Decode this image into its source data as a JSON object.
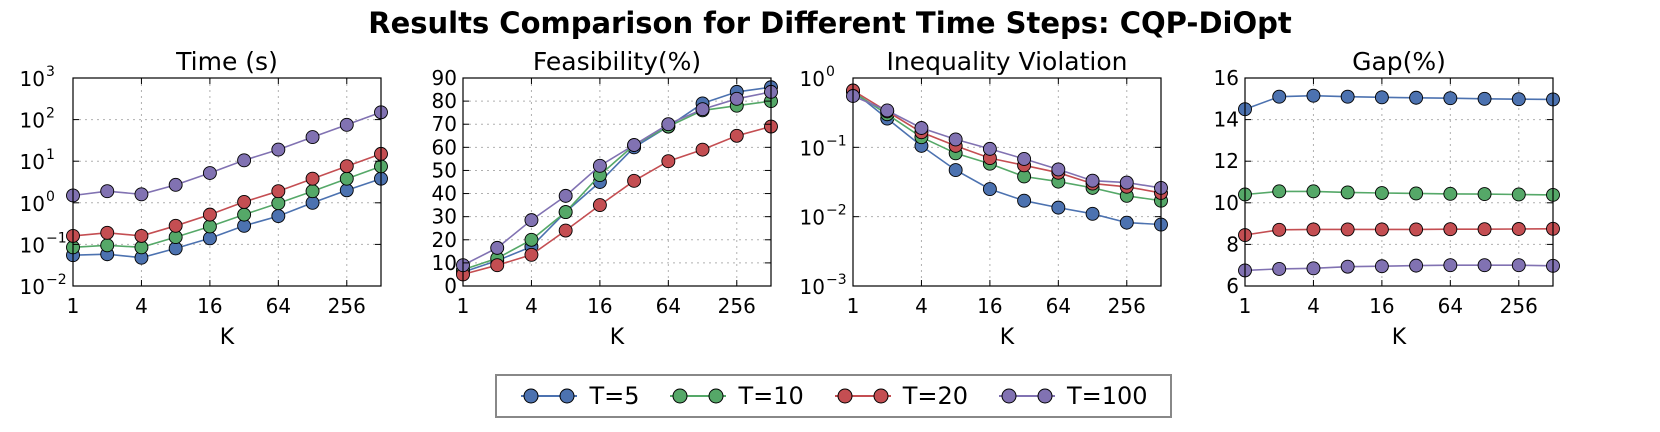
{
  "title": "Results Comparison for Different Time Steps: CQP-DiOpt",
  "legend": [
    "T=5",
    "T=10",
    "T=20",
    "T=100"
  ],
  "colors": {
    "T=5": "#4c72b0",
    "T=10": "#55a868",
    "T=20": "#c44e52",
    "T=100": "#8172b2"
  },
  "chart_data": [
    {
      "type": "line",
      "title": "Time (s)",
      "xlabel": "K",
      "ylabel": "",
      "xscale": "log2",
      "yscale": "log",
      "x": [
        1,
        2,
        4,
        8,
        16,
        32,
        64,
        128,
        256,
        512
      ],
      "xticks": [
        1,
        4,
        16,
        64,
        256
      ],
      "xlim": [
        1,
        512
      ],
      "ylim": [
        0.01,
        1000
      ],
      "yticks": [
        0.01,
        0.1,
        1,
        10,
        100,
        1000
      ],
      "yticklabels": [
        "10",
        "10",
        "10",
        "10",
        "10",
        "10"
      ],
      "ytickexp": [
        "−2",
        "−1",
        "0",
        "1",
        "2",
        "3"
      ],
      "grid": true,
      "series": [
        {
          "name": "T=5",
          "values": [
            0.055,
            0.058,
            0.048,
            0.08,
            0.14,
            0.28,
            0.48,
            1.0,
            2.0,
            3.8
          ]
        },
        {
          "name": "T=10",
          "values": [
            0.085,
            0.095,
            0.085,
            0.15,
            0.27,
            0.52,
            0.98,
            1.9,
            3.8,
            7.5
          ]
        },
        {
          "name": "T=20",
          "values": [
            0.16,
            0.19,
            0.16,
            0.28,
            0.52,
            1.05,
            1.9,
            3.8,
            7.6,
            15
          ]
        },
        {
          "name": "T=100",
          "values": [
            1.5,
            1.9,
            1.6,
            2.7,
            5.2,
            10.5,
            19,
            38,
            75,
            150
          ]
        }
      ]
    },
    {
      "type": "line",
      "title": "Feasibility(%)",
      "xlabel": "K",
      "ylabel": "",
      "xscale": "log2",
      "yscale": "linear",
      "x": [
        1,
        2,
        4,
        8,
        16,
        32,
        64,
        128,
        256,
        512
      ],
      "xticks": [
        1,
        4,
        16,
        64,
        256
      ],
      "xlim": [
        1,
        512
      ],
      "ylim": [
        0,
        90
      ],
      "yticks": [
        0,
        10,
        20,
        30,
        40,
        50,
        60,
        70,
        80,
        90
      ],
      "grid": true,
      "series": [
        {
          "name": "T=5",
          "values": [
            6,
            11,
            17,
            32,
            45,
            60,
            69,
            79,
            84,
            86
          ]
        },
        {
          "name": "T=10",
          "values": [
            7,
            12,
            20,
            32,
            48,
            61,
            69,
            76,
            78,
            80
          ]
        },
        {
          "name": "T=20",
          "values": [
            5,
            9,
            13.5,
            24,
            35,
            45.5,
            54,
            59,
            65,
            69
          ]
        },
        {
          "name": "T=100",
          "values": [
            9,
            16.5,
            28.5,
            39,
            52,
            61,
            70,
            76.5,
            81,
            84
          ]
        }
      ]
    },
    {
      "type": "line",
      "title": "Inequality Violation",
      "xlabel": "K",
      "ylabel": "",
      "xscale": "log2",
      "yscale": "log",
      "x": [
        1,
        2,
        4,
        8,
        16,
        32,
        64,
        128,
        256,
        512
      ],
      "xticks": [
        1,
        4,
        16,
        64,
        256
      ],
      "xlim": [
        1,
        512
      ],
      "ylim": [
        0.001,
        1
      ],
      "yticks": [
        0.001,
        0.01,
        0.1,
        1
      ],
      "yticklabels": [
        "10",
        "10",
        "10",
        "10"
      ],
      "ytickexp": [
        "−3",
        "−2",
        "−1",
        "0"
      ],
      "grid": true,
      "series": [
        {
          "name": "T=5",
          "values": [
            0.65,
            0.26,
            0.105,
            0.047,
            0.025,
            0.017,
            0.0135,
            0.011,
            0.0082,
            0.0077
          ]
        },
        {
          "name": "T=10",
          "values": [
            0.63,
            0.3,
            0.14,
            0.082,
            0.058,
            0.038,
            0.032,
            0.026,
            0.02,
            0.017
          ]
        },
        {
          "name": "T=20",
          "values": [
            0.66,
            0.33,
            0.165,
            0.105,
            0.07,
            0.055,
            0.043,
            0.03,
            0.027,
            0.022
          ]
        },
        {
          "name": "T=100",
          "values": [
            0.55,
            0.34,
            0.19,
            0.13,
            0.095,
            0.068,
            0.048,
            0.033,
            0.031,
            0.026
          ]
        }
      ]
    },
    {
      "type": "line",
      "title": "Gap(%)",
      "xlabel": "K",
      "ylabel": "",
      "xscale": "log2",
      "yscale": "linear",
      "x": [
        1,
        2,
        4,
        8,
        16,
        32,
        64,
        128,
        256,
        512
      ],
      "xticks": [
        1,
        4,
        16,
        64,
        256
      ],
      "xlim": [
        1,
        512
      ],
      "ylim": [
        6,
        16
      ],
      "yticks": [
        6,
        8,
        10,
        12,
        14,
        16
      ],
      "grid": true,
      "series": [
        {
          "name": "T=5",
          "values": [
            14.5,
            15.1,
            15.15,
            15.1,
            15.07,
            15.05,
            15.03,
            15.0,
            14.98,
            14.97
          ]
        },
        {
          "name": "T=10",
          "values": [
            10.4,
            10.55,
            10.55,
            10.5,
            10.47,
            10.45,
            10.43,
            10.42,
            10.4,
            10.38
          ]
        },
        {
          "name": "T=20",
          "values": [
            8.45,
            8.7,
            8.72,
            8.72,
            8.72,
            8.72,
            8.73,
            8.73,
            8.74,
            8.75
          ]
        },
        {
          "name": "T=100",
          "values": [
            6.75,
            6.82,
            6.85,
            6.93,
            6.95,
            6.98,
            7.0,
            7.0,
            7.0,
            6.97
          ]
        }
      ]
    }
  ]
}
